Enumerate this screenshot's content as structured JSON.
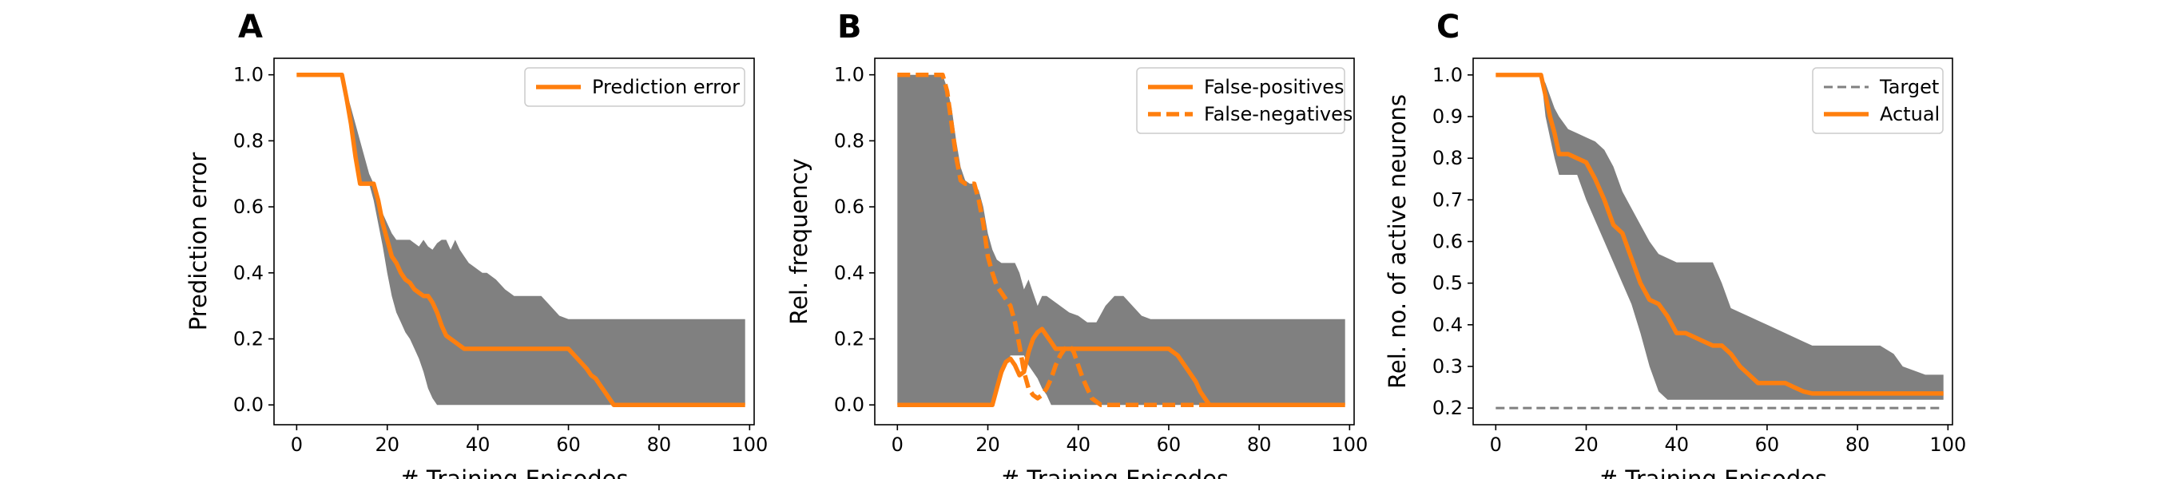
{
  "colors": {
    "accent": "#ff7f0e",
    "band": "#808080",
    "target": "#808080",
    "frame": "#000000"
  },
  "chart_data": [
    {
      "type": "line",
      "panel_label": "A",
      "xlabel": "# Training Episodes",
      "ylabel": "Prediction error",
      "xlim": [
        -5,
        101
      ],
      "ylim": [
        -0.06,
        1.05
      ],
      "xticks": [
        0,
        20,
        40,
        60,
        80,
        100
      ],
      "xtick_labels": [
        "0",
        "20",
        "40",
        "60",
        "80",
        "100"
      ],
      "yticks": [
        0.0,
        0.2,
        0.4,
        0.6,
        0.8,
        1.0
      ],
      "ytick_labels": [
        "0.0",
        "0.2",
        "0.4",
        "0.6",
        "0.8",
        "1.0"
      ],
      "legend_position": "top-right",
      "band": {
        "x": [
          0,
          10,
          11,
          12,
          13,
          14,
          15,
          16,
          17,
          18,
          19,
          20,
          21,
          22,
          23,
          24,
          25,
          26,
          27,
          28,
          29,
          30,
          31,
          32,
          33,
          34,
          35,
          36,
          37,
          38,
          39,
          40,
          41,
          42,
          44,
          46,
          48,
          50,
          52,
          54,
          56,
          58,
          60,
          65,
          70,
          75,
          80,
          90,
          99
        ],
        "upper": [
          1.0,
          1.0,
          0.95,
          0.9,
          0.85,
          0.8,
          0.75,
          0.7,
          0.67,
          0.62,
          0.58,
          0.55,
          0.52,
          0.5,
          0.5,
          0.5,
          0.5,
          0.49,
          0.48,
          0.5,
          0.48,
          0.47,
          0.49,
          0.5,
          0.5,
          0.47,
          0.5,
          0.47,
          0.45,
          0.43,
          0.42,
          0.41,
          0.4,
          0.4,
          0.38,
          0.35,
          0.33,
          0.33,
          0.33,
          0.33,
          0.3,
          0.27,
          0.26,
          0.26,
          0.26,
          0.26,
          0.26,
          0.26,
          0.26
        ],
        "lower": [
          1.0,
          1.0,
          0.9,
          0.82,
          0.75,
          0.67,
          0.67,
          0.67,
          0.62,
          0.55,
          0.48,
          0.4,
          0.33,
          0.28,
          0.25,
          0.22,
          0.2,
          0.17,
          0.14,
          0.1,
          0.05,
          0.02,
          0.0,
          0.0,
          0.0,
          0.0,
          0.0,
          0.0,
          0.0,
          0.0,
          0.0,
          0.0,
          0.0,
          0.0,
          0.0,
          0.0,
          0.0,
          0.0,
          0.0,
          0.0,
          0.0,
          0.0,
          0.0,
          0.0,
          0.0,
          0.0,
          0.0,
          0.0,
          0.0
        ]
      },
      "series": [
        {
          "name": "Prediction error",
          "style": "solid",
          "x": [
            0,
            10,
            11,
            12,
            13,
            14,
            15,
            16,
            17,
            18,
            19,
            20,
            21,
            22,
            23,
            24,
            25,
            26,
            27,
            28,
            29,
            30,
            31,
            32,
            33,
            34,
            35,
            36,
            37,
            38,
            39,
            40,
            45,
            50,
            55,
            59,
            60,
            62,
            64,
            65,
            66,
            67,
            68,
            69,
            70,
            80,
            90,
            99
          ],
          "y": [
            1.0,
            1.0,
            0.93,
            0.85,
            0.75,
            0.67,
            0.67,
            0.67,
            0.67,
            0.62,
            0.55,
            0.5,
            0.45,
            0.43,
            0.4,
            0.38,
            0.37,
            0.35,
            0.34,
            0.33,
            0.33,
            0.31,
            0.28,
            0.24,
            0.21,
            0.2,
            0.19,
            0.18,
            0.17,
            0.17,
            0.17,
            0.17,
            0.17,
            0.17,
            0.17,
            0.17,
            0.17,
            0.14,
            0.11,
            0.09,
            0.08,
            0.06,
            0.04,
            0.02,
            0.0,
            0.0,
            0.0,
            0.0
          ]
        }
      ]
    },
    {
      "type": "line",
      "panel_label": "B",
      "xlabel": "# Training Episodes",
      "ylabel": "Rel. frequency",
      "xlim": [
        -5,
        101
      ],
      "ylim": [
        -0.06,
        1.05
      ],
      "xticks": [
        0,
        20,
        40,
        60,
        80,
        100
      ],
      "xtick_labels": [
        "0",
        "20",
        "40",
        "60",
        "80",
        "100"
      ],
      "yticks": [
        0.0,
        0.2,
        0.4,
        0.6,
        0.8,
        1.0
      ],
      "ytick_labels": [
        "0.0",
        "0.2",
        "0.4",
        "0.6",
        "0.8",
        "1.0"
      ],
      "legend_position": "top-right",
      "band": {
        "x": [
          0,
          10,
          11,
          12,
          13,
          14,
          15,
          16,
          17,
          18,
          19,
          20,
          21,
          22,
          23,
          24,
          25,
          26,
          27,
          28,
          29,
          30,
          31,
          32,
          33,
          34,
          36,
          38,
          40,
          42,
          44,
          46,
          48,
          50,
          52,
          54,
          56,
          58,
          60,
          65,
          70,
          75,
          80,
          90,
          99
        ],
        "upper": [
          1.0,
          1.0,
          0.96,
          0.9,
          0.8,
          0.72,
          0.68,
          0.67,
          0.67,
          0.65,
          0.6,
          0.52,
          0.47,
          0.44,
          0.43,
          0.43,
          0.43,
          0.43,
          0.4,
          0.35,
          0.38,
          0.34,
          0.3,
          0.33,
          0.33,
          0.32,
          0.3,
          0.28,
          0.27,
          0.25,
          0.25,
          0.3,
          0.33,
          0.33,
          0.3,
          0.27,
          0.26,
          0.26,
          0.26,
          0.26,
          0.26,
          0.26,
          0.26,
          0.26,
          0.26
        ],
        "lower": [
          0.0,
          0.0,
          0.0,
          0.0,
          0.0,
          0.0,
          0.0,
          0.0,
          0.0,
          0.0,
          0.0,
          0.0,
          0.0,
          0.03,
          0.08,
          0.12,
          0.15,
          0.15,
          0.15,
          0.15,
          0.12,
          0.1,
          0.08,
          0.05,
          0.03,
          0.0,
          0.0,
          0.0,
          0.0,
          0.0,
          0.0,
          0.0,
          0.0,
          0.0,
          0.0,
          0.0,
          0.0,
          0.0,
          0.0,
          0.0,
          0.0,
          0.0,
          0.0,
          0.0,
          0.0
        ]
      },
      "series": [
        {
          "name": "False-positives",
          "style": "solid",
          "x": [
            0,
            21,
            22,
            23,
            24,
            25,
            26,
            27,
            28,
            29,
            30,
            31,
            32,
            33,
            34,
            35,
            36,
            38,
            40,
            45,
            50,
            55,
            60,
            62,
            64,
            66,
            67,
            68,
            69,
            70,
            80,
            90,
            99
          ],
          "y": [
            0.0,
            0.0,
            0.05,
            0.1,
            0.13,
            0.14,
            0.12,
            0.09,
            0.1,
            0.16,
            0.2,
            0.22,
            0.23,
            0.21,
            0.19,
            0.17,
            0.17,
            0.17,
            0.17,
            0.17,
            0.17,
            0.17,
            0.17,
            0.15,
            0.11,
            0.07,
            0.04,
            0.02,
            0.0,
            0.0,
            0.0,
            0.0,
            0.0
          ]
        },
        {
          "name": "False-negatives",
          "style": "dashed",
          "x": [
            0,
            10,
            11,
            12,
            13,
            14,
            15,
            16,
            17,
            18,
            19,
            20,
            21,
            22,
            23,
            24,
            25,
            26,
            27,
            28,
            29,
            30,
            31,
            32,
            33,
            34,
            35,
            36,
            37,
            38,
            39,
            40,
            41,
            42,
            43,
            44,
            45,
            46,
            47,
            50,
            60,
            66,
            70
          ],
          "y": [
            1.0,
            1.0,
            0.95,
            0.85,
            0.75,
            0.68,
            0.67,
            0.67,
            0.67,
            0.62,
            0.55,
            0.45,
            0.4,
            0.36,
            0.34,
            0.32,
            0.3,
            0.25,
            0.18,
            0.1,
            0.05,
            0.03,
            0.02,
            0.03,
            0.05,
            0.08,
            0.12,
            0.15,
            0.17,
            0.18,
            0.16,
            0.12,
            0.08,
            0.05,
            0.02,
            0.01,
            0.0,
            0.0,
            0.0,
            0.0,
            0.0,
            0.0,
            0.0
          ]
        }
      ]
    },
    {
      "type": "line",
      "panel_label": "C",
      "xlabel": "# Training Episodes",
      "ylabel": "Rel. no. of active neurons",
      "xlim": [
        -5,
        101
      ],
      "ylim": [
        0.16,
        1.04
      ],
      "xticks": [
        0,
        20,
        40,
        60,
        80,
        100
      ],
      "xtick_labels": [
        "0",
        "20",
        "40",
        "60",
        "80",
        "100"
      ],
      "yticks": [
        0.2,
        0.3,
        0.4,
        0.5,
        0.6,
        0.7,
        0.8,
        0.9,
        1.0
      ],
      "ytick_labels": [
        "0.2",
        "0.3",
        "0.4",
        "0.5",
        "0.6",
        "0.7",
        "0.8",
        "0.9",
        "1.0"
      ],
      "legend_position": "top-right",
      "band": {
        "x": [
          0,
          10,
          11,
          12,
          13,
          14,
          16,
          18,
          20,
          22,
          24,
          26,
          28,
          30,
          32,
          34,
          36,
          38,
          40,
          42,
          44,
          46,
          48,
          50,
          52,
          54,
          56,
          58,
          60,
          62,
          64,
          66,
          68,
          70,
          75,
          80,
          85,
          88,
          90,
          95,
          99
        ],
        "upper": [
          1.0,
          1.0,
          0.98,
          0.95,
          0.92,
          0.9,
          0.87,
          0.86,
          0.85,
          0.84,
          0.82,
          0.78,
          0.72,
          0.68,
          0.64,
          0.6,
          0.57,
          0.56,
          0.55,
          0.55,
          0.55,
          0.55,
          0.55,
          0.5,
          0.44,
          0.43,
          0.42,
          0.41,
          0.4,
          0.39,
          0.38,
          0.37,
          0.36,
          0.35,
          0.35,
          0.35,
          0.35,
          0.33,
          0.3,
          0.28,
          0.28
        ],
        "lower": [
          1.0,
          1.0,
          0.9,
          0.85,
          0.8,
          0.76,
          0.76,
          0.76,
          0.7,
          0.65,
          0.6,
          0.55,
          0.5,
          0.45,
          0.38,
          0.3,
          0.24,
          0.22,
          0.22,
          0.22,
          0.22,
          0.22,
          0.22,
          0.22,
          0.22,
          0.22,
          0.22,
          0.22,
          0.22,
          0.22,
          0.22,
          0.22,
          0.22,
          0.22,
          0.22,
          0.22,
          0.22,
          0.22,
          0.22,
          0.22,
          0.22
        ]
      },
      "series": [
        {
          "name": "Target",
          "style": "dashed",
          "color": "#808080",
          "x": [
            0,
            99
          ],
          "y": [
            0.2,
            0.2
          ]
        },
        {
          "name": "Actual",
          "style": "solid",
          "x": [
            0,
            10,
            11,
            12,
            13,
            14,
            16,
            18,
            20,
            22,
            24,
            26,
            28,
            30,
            32,
            34,
            36,
            38,
            40,
            42,
            44,
            46,
            48,
            50,
            52,
            54,
            56,
            58,
            60,
            62,
            64,
            66,
            68,
            70,
            80,
            90,
            99
          ],
          "y": [
            1.0,
            1.0,
            0.95,
            0.9,
            0.86,
            0.81,
            0.81,
            0.8,
            0.79,
            0.75,
            0.7,
            0.64,
            0.62,
            0.56,
            0.5,
            0.46,
            0.45,
            0.42,
            0.38,
            0.38,
            0.37,
            0.36,
            0.35,
            0.35,
            0.33,
            0.3,
            0.28,
            0.26,
            0.26,
            0.26,
            0.26,
            0.25,
            0.24,
            0.235,
            0.235,
            0.235,
            0.235
          ]
        }
      ]
    }
  ]
}
